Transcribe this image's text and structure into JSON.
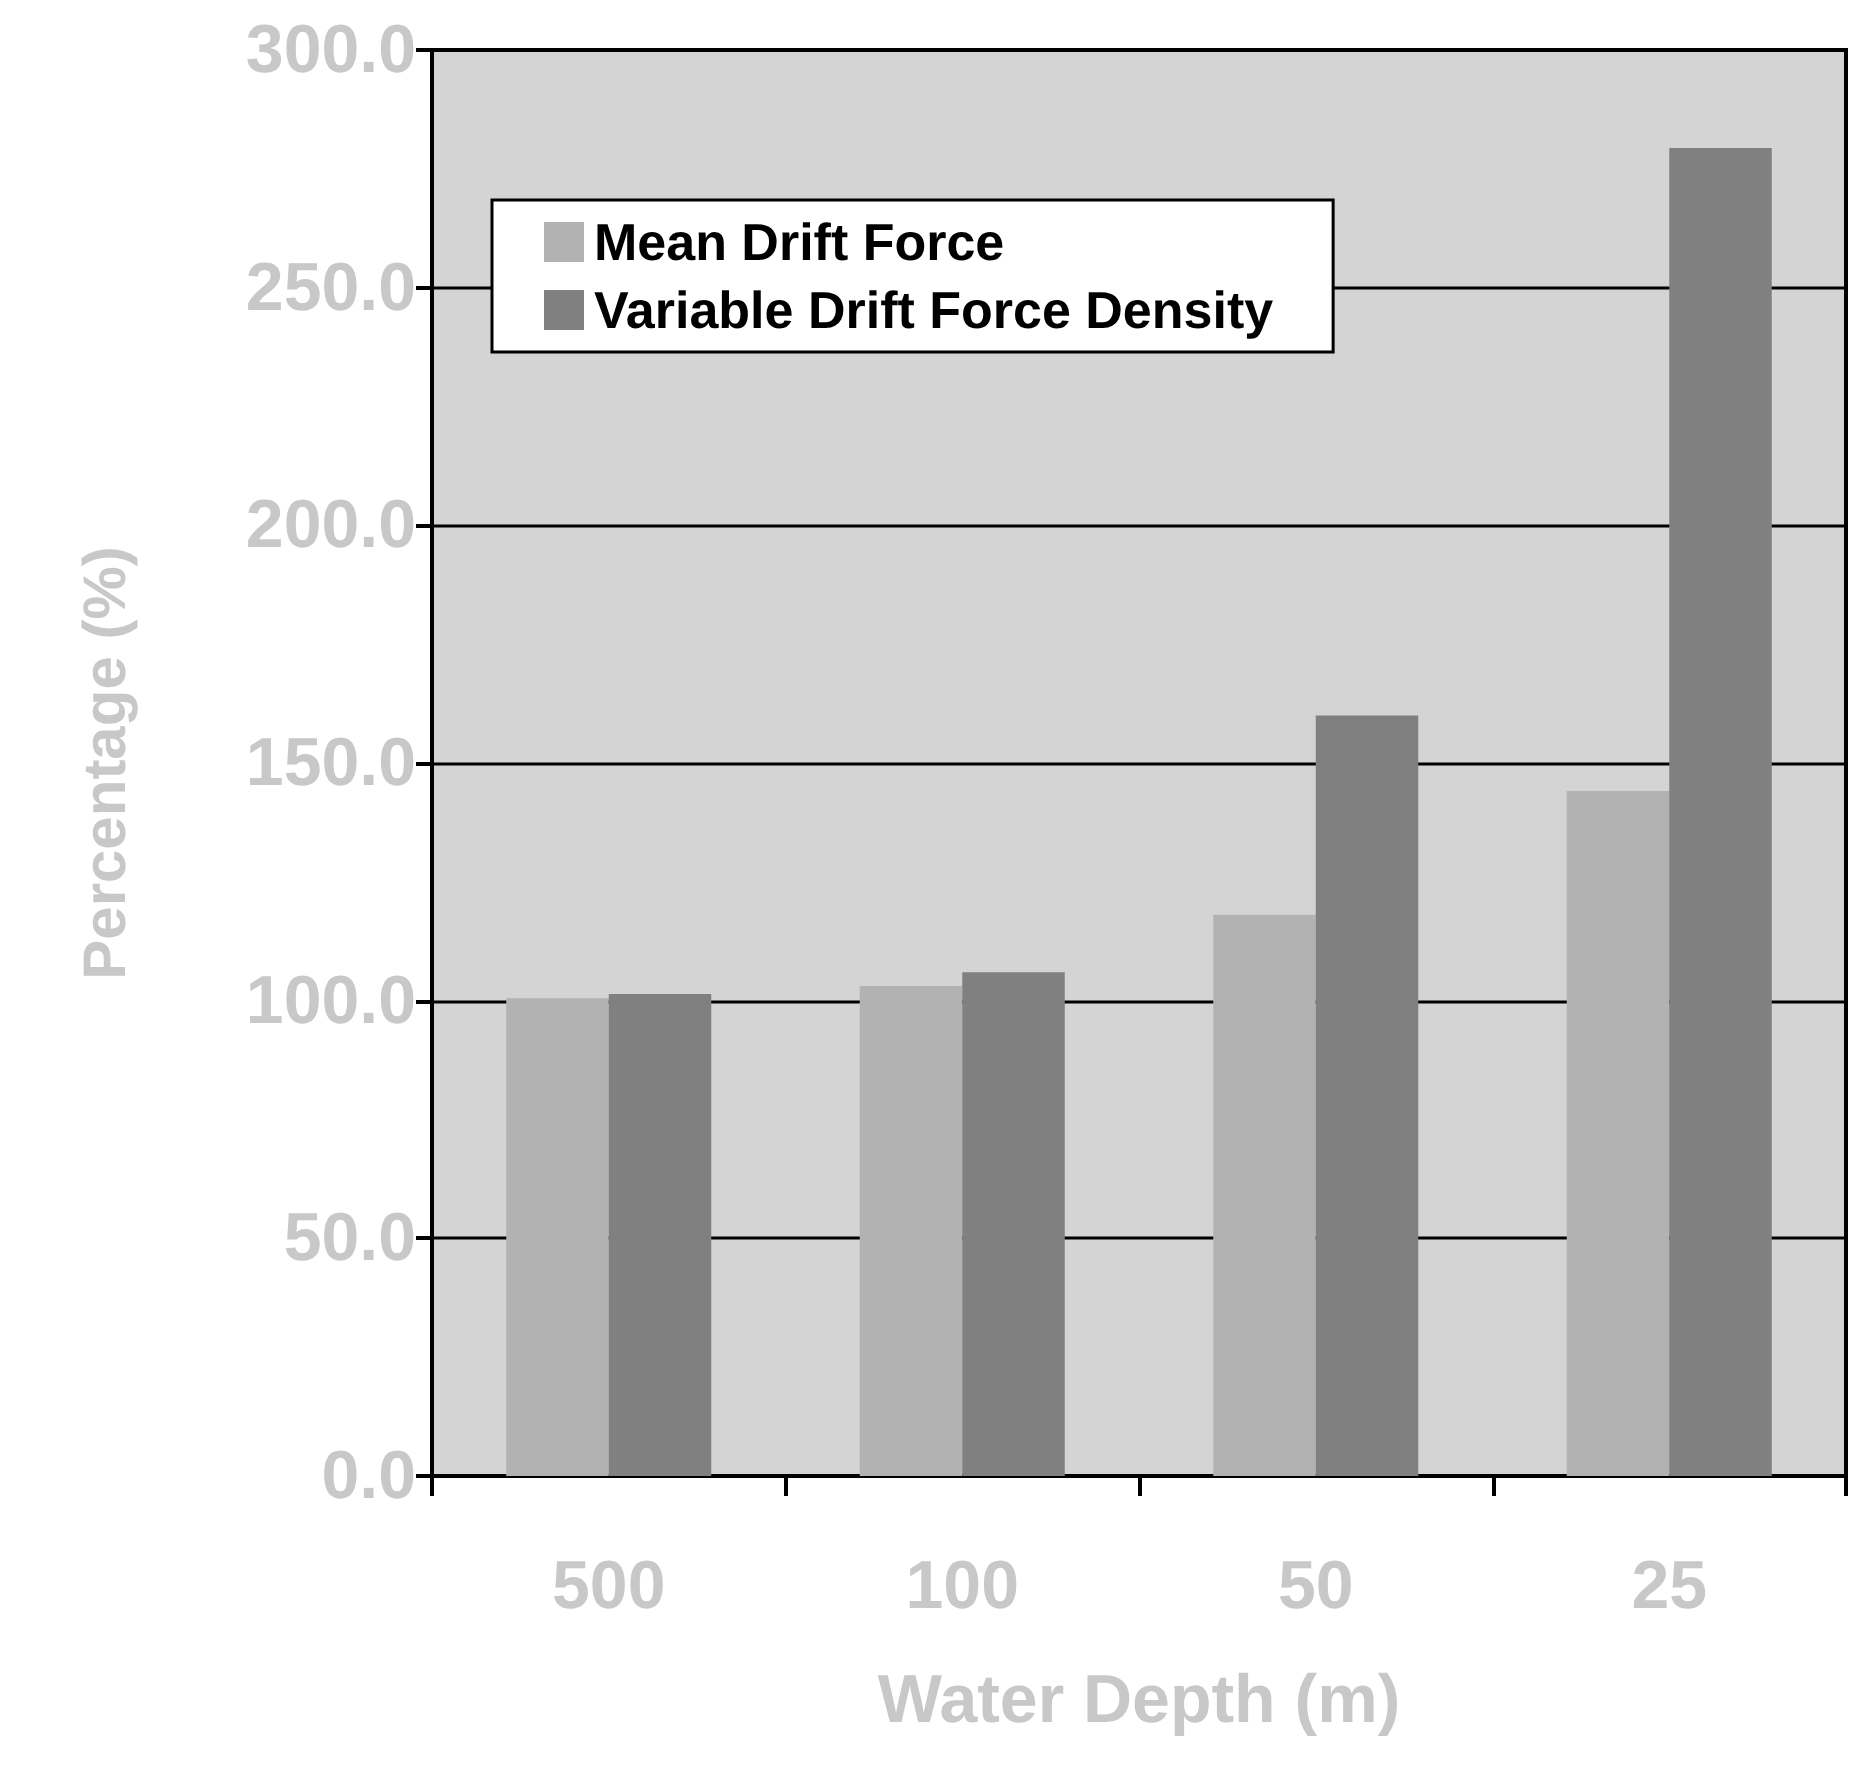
{
  "chart_data": {
    "type": "bar",
    "xlabel": "Water Depth (m)",
    "ylabel": "Percentage (%)",
    "categories": [
      "500",
      "100",
      "50",
      "25"
    ],
    "series": [
      {
        "name": "Mean Drift Force",
        "color": "#b2b2b2",
        "values": [
          100.5,
          103.1,
          118.1,
          144.1
        ]
      },
      {
        "name": "Variable Drift Force Density",
        "color": "#808080",
        "values": [
          101.4,
          106.0,
          160.0,
          279.4
        ]
      }
    ],
    "ylim": [
      0,
      300
    ],
    "yticks": [
      {
        "value": 0,
        "label": "0.0"
      },
      {
        "value": 50,
        "label": "50.0"
      },
      {
        "value": 100,
        "label": "100.0"
      },
      {
        "value": 150,
        "label": "150.0"
      },
      {
        "value": 200,
        "label": "200.0"
      },
      {
        "value": 250,
        "label": "250.0"
      },
      {
        "value": 300,
        "label": "300.0"
      }
    ],
    "grid": "y",
    "legend": "top left"
  }
}
